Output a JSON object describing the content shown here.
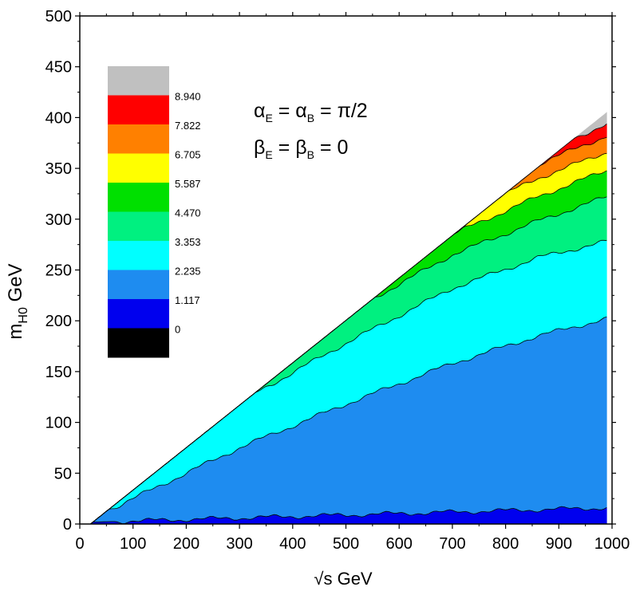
{
  "chart_data": {
    "type": "heatmap",
    "xlabel": "√s GeV",
    "ylabel_main": "m",
    "ylabel_sub": "H0",
    "ylabel_unit": " GeV",
    "xlim": [
      0,
      1000
    ],
    "ylim": [
      0,
      500
    ],
    "xticks": [
      "0",
      "100",
      "200",
      "300",
      "400",
      "500",
      "600",
      "700",
      "800",
      "900",
      "1000"
    ],
    "yticks": [
      "0",
      "50",
      "100",
      "150",
      "200",
      "250",
      "300",
      "350",
      "400",
      "450",
      "500"
    ],
    "legend_levels": [
      "0",
      "1.117",
      "2.235",
      "3.353",
      "4.470",
      "5.587",
      "6.705",
      "7.822",
      "8.940"
    ],
    "legend_colors": [
      "#000000",
      "#0000ee",
      "#1e8cf0",
      "#00ffff",
      "#00f080",
      "#00e000",
      "#ffff00",
      "#ff8000",
      "#ff0000",
      "#c0c0c0"
    ],
    "annotation": {
      "line1_alpha_E": "α",
      "line1_sub_E": "E",
      "line1_eq": " = ",
      "line1_alpha_B": "α",
      "line1_sub_B": "B",
      "line1_rhs": " = π/2",
      "line2_beta_E": "β",
      "line2_sub_E": "E",
      "line2_eq": " = ",
      "line2_beta_B": "β",
      "line2_sub_B": "B",
      "line2_rhs": " = 0"
    },
    "boundary_max_mH0": [
      {
        "sqrt_s": 20,
        "mH0": 0
      },
      {
        "sqrt_s": 990,
        "mH0": 405
      }
    ],
    "contour_lines": [
      {
        "level": "1.117",
        "points": [
          [
            30,
            2
          ],
          [
            990,
            16
          ]
        ]
      },
      {
        "level": "2.235",
        "points": [
          [
            60,
            15
          ],
          [
            300,
            75
          ],
          [
            500,
            118
          ],
          [
            700,
            158
          ],
          [
            860,
            185
          ],
          [
            990,
            202
          ]
        ]
      },
      {
        "level": "3.353",
        "points": [
          [
            40,
            15
          ],
          [
            300,
            120
          ],
          [
            500,
            178
          ],
          [
            700,
            232
          ],
          [
            860,
            262
          ],
          [
            990,
            278
          ]
        ]
      },
      {
        "level": "4.470",
        "points": [
          [
            40,
            17
          ],
          [
            300,
            140
          ],
          [
            500,
            207
          ],
          [
            700,
            265
          ],
          [
            860,
            298
          ],
          [
            990,
            322
          ]
        ]
      },
      {
        "level": "5.587",
        "points": [
          [
            40,
            18
          ],
          [
            300,
            150
          ],
          [
            500,
            222
          ],
          [
            700,
            285
          ],
          [
            860,
            322
          ],
          [
            990,
            348
          ]
        ]
      },
      {
        "level": "6.705",
        "points": [
          [
            40,
            19
          ],
          [
            300,
            158
          ],
          [
            500,
            233
          ],
          [
            700,
            300
          ],
          [
            860,
            340
          ],
          [
            990,
            366
          ]
        ]
      },
      {
        "level": "7.822",
        "points": [
          [
            40,
            19.5
          ],
          [
            300,
            164
          ],
          [
            500,
            242
          ],
          [
            700,
            312
          ],
          [
            860,
            354
          ],
          [
            990,
            382
          ]
        ]
      },
      {
        "level": "8.940",
        "points": [
          [
            40,
            20
          ],
          [
            300,
            170
          ],
          [
            500,
            250
          ],
          [
            700,
            322
          ],
          [
            860,
            366
          ],
          [
            990,
            393
          ]
        ]
      }
    ]
  }
}
